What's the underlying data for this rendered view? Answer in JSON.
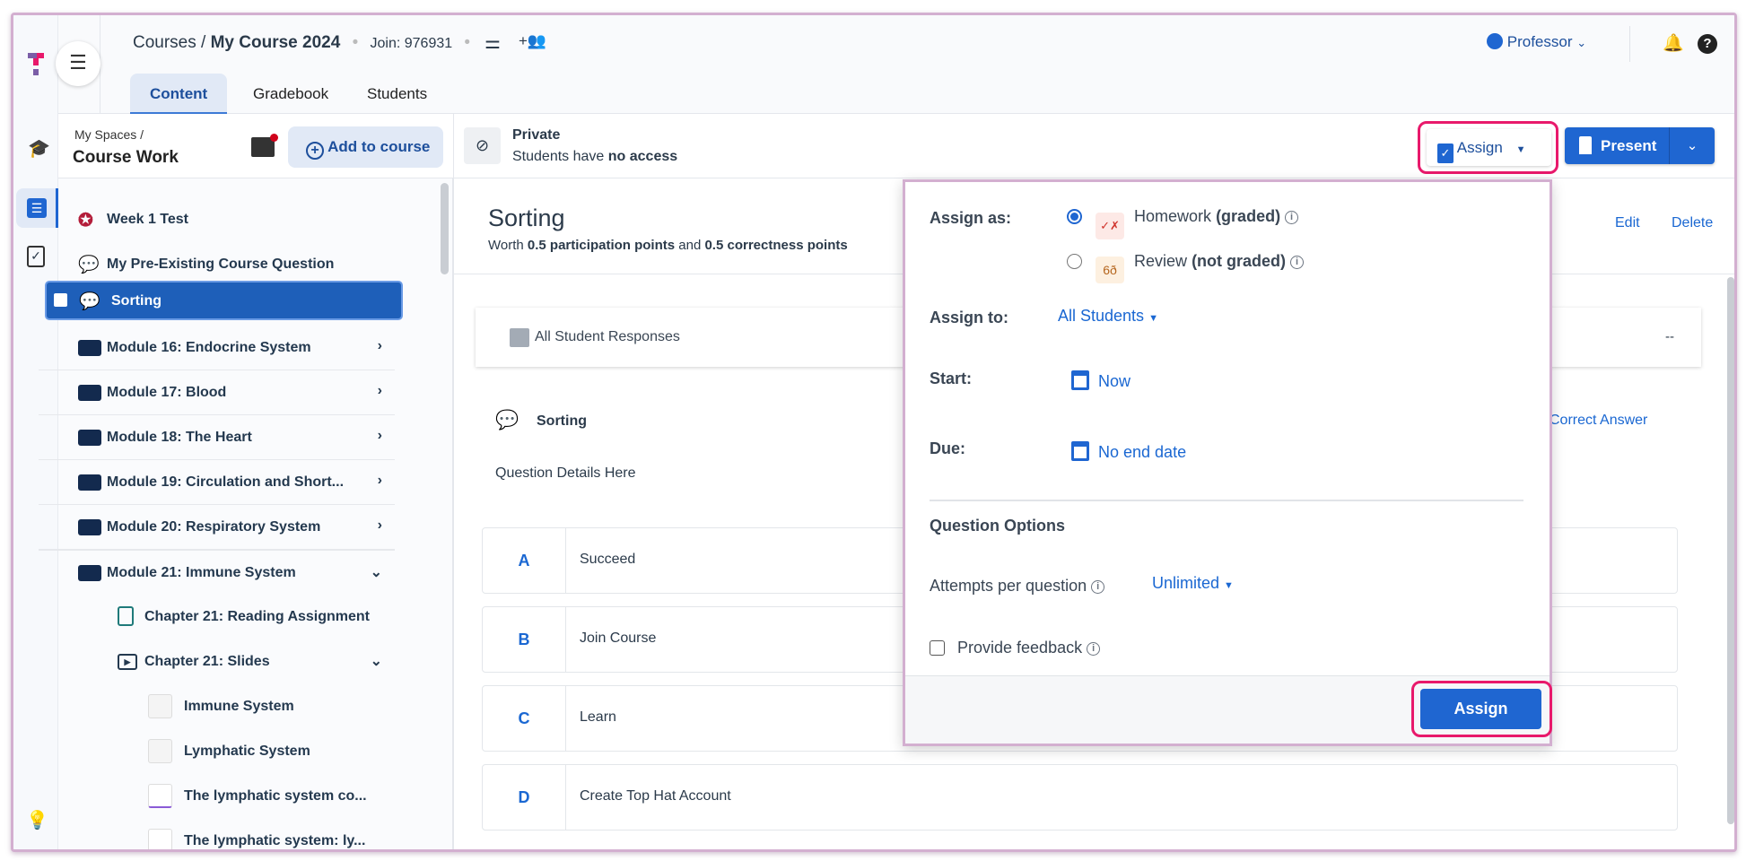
{
  "header": {
    "breadcrumb_root": "Courses",
    "breadcrumb_sep": "/",
    "course": "My Course 2024",
    "join": "Join: 976931",
    "tabs": [
      "Content",
      "Gradebook",
      "Students"
    ],
    "user": "Professor"
  },
  "left_panel": {
    "breadcrumb": "My Spaces /",
    "title": "Course Work",
    "add_button": "Add to course",
    "items": [
      {
        "label": "Week 1 Test"
      },
      {
        "label": "My Pre-Existing Course Question"
      },
      {
        "label": "Sorting",
        "selected": true
      },
      {
        "label": "Module 16: Endocrine System"
      },
      {
        "label": "Module 17: Blood"
      },
      {
        "label": "Module 18: The Heart"
      },
      {
        "label": "Module 19: Circulation and Short..."
      },
      {
        "label": "Module 20: Respiratory System"
      },
      {
        "label": "Module 21: Immune System",
        "expanded": true
      },
      {
        "label": "Chapter 21: Reading Assignment"
      },
      {
        "label": "Chapter 21: Slides",
        "expanded": true
      },
      {
        "label": "Immune System"
      },
      {
        "label": "Lymphatic System"
      },
      {
        "label": "The lymphatic system co..."
      },
      {
        "label": "The lymphatic system: ly..."
      }
    ]
  },
  "toolbar": {
    "visibility_title": "Private",
    "visibility_prefix": "Students have ",
    "visibility_bold": "no access",
    "assign": "Assign",
    "present": "Present"
  },
  "main": {
    "title": "Sorting",
    "worth_1": "Worth ",
    "worth_2": "0.5 participation points",
    "worth_3": " and ",
    "worth_4": "0.5 correctness points",
    "edit": "Edit",
    "delete": "Delete",
    "responses_label": "All Student Responses",
    "responses_value": "--",
    "question_title": "Sorting",
    "correct_answer": "Correct Answer",
    "details": "Question Details Here",
    "answers": [
      {
        "letter": "A",
        "text": "Succeed"
      },
      {
        "letter": "B",
        "text": "Join Course"
      },
      {
        "letter": "C",
        "text": "Learn"
      },
      {
        "letter": "D",
        "text": "Create Top Hat Account"
      }
    ]
  },
  "popup": {
    "assign_as_label": "Assign as:",
    "options": [
      {
        "label": "Homework ",
        "qualifier": "(graded)",
        "selected": true
      },
      {
        "label": "Review ",
        "qualifier": "(not graded)",
        "selected": false
      }
    ],
    "assign_to_label": "Assign to:",
    "assign_to_value": "All Students",
    "start_label": "Start:",
    "start_value": "Now",
    "due_label": "Due:",
    "due_value": "No end date",
    "question_options_heading": "Question Options",
    "attempts_label": "Attempts per question",
    "attempts_value": "Unlimited",
    "feedback_label": "Provide feedback",
    "feedback_checked": false,
    "submit": "Assign"
  },
  "colors": {
    "accent": "#1f66d1",
    "highlight": "#e8196b",
    "selected_row": "#1e5fb9"
  }
}
